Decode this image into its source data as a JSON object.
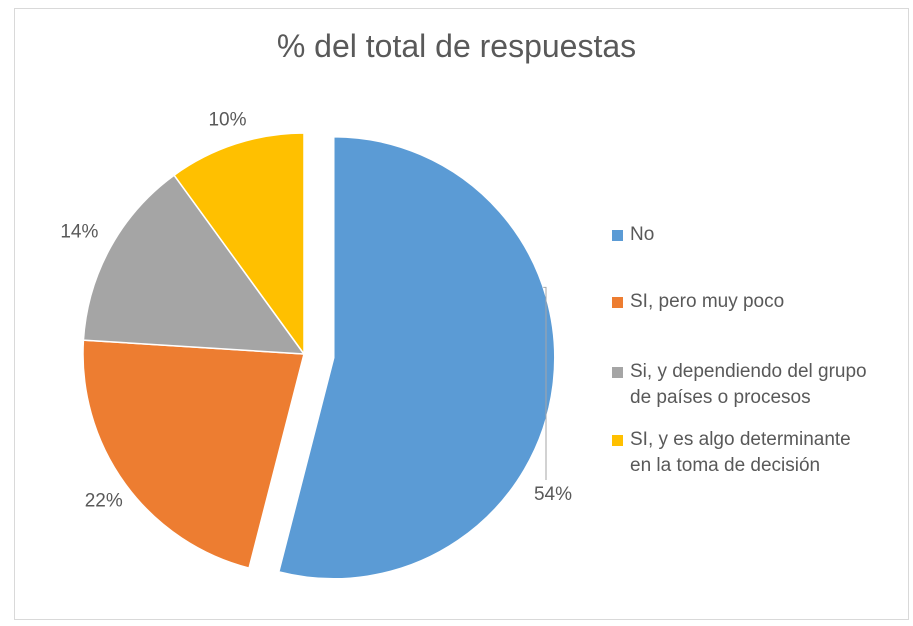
{
  "chart_data": {
    "type": "pie",
    "title": "% del total de respuestas",
    "categories": [
      "No",
      "SI, pero muy poco",
      "Si, y dependiendo del grupo de países o procesos",
      "SI, y es algo determinante en la toma de decisión"
    ],
    "values": [
      54,
      22,
      14,
      10
    ],
    "data_labels": [
      "54%",
      "22%",
      "14%",
      "10%"
    ],
    "legend_labels": [
      "No",
      "SI, pero muy poco",
      "Si, y dependiendo del grupo\nde países o procesos",
      "SI, y es algo determinante\nen la toma de decisión"
    ],
    "colors": [
      "#5b9bd5",
      "#ed7d31",
      "#a5a5a5",
      "#ffc000"
    ],
    "exploded_slice": "No",
    "legend_position": "right"
  }
}
